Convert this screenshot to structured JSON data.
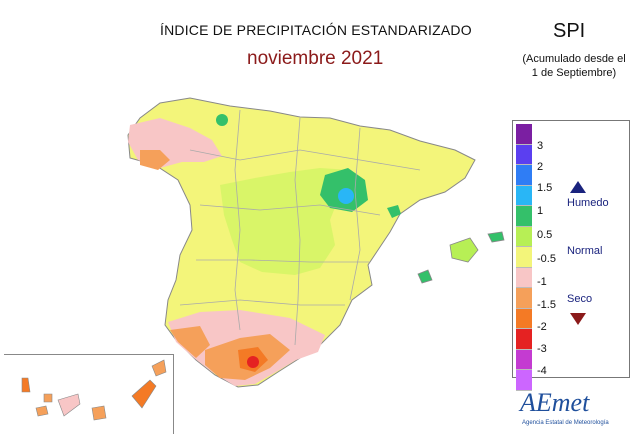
{
  "title": "ÍNDICE DE PRECIPITACIÓN ESTANDARIZADO",
  "subtitle": "noviembre 2021",
  "index_label": "SPI",
  "note_line1": "(Acumulado desde el",
  "note_line2": "1 de Septiembre)",
  "legend": {
    "colors": [
      "#7b1fa2",
      "#5b3ff0",
      "#2f7df5",
      "#29b6f6",
      "#34c06a",
      "#b7ef55",
      "#f3f57a",
      "#f8c6c6",
      "#f5a05a",
      "#f47a25",
      "#e52222",
      "#c43bd1",
      "#cc66ff"
    ],
    "ticks": [
      "3",
      "2",
      "1.5",
      "1",
      "0.5",
      "-0.5",
      "-1",
      "-1.5",
      "-2",
      "-3",
      "-4"
    ],
    "humid_label": "Humedo",
    "normal_label": "Normal",
    "dry_label": "Seco"
  },
  "logo": {
    "name": "AEmet",
    "subtitle": "Agencia Estatal de Meteorología"
  }
}
